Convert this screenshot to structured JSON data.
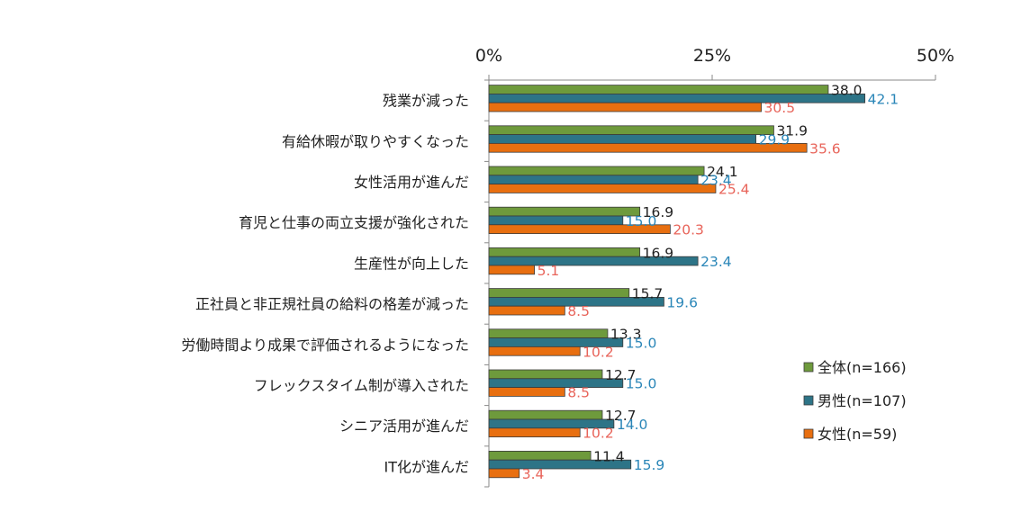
{
  "chart_data": {
    "type": "bar",
    "orientation": "horizontal",
    "xlim": [
      0,
      50
    ],
    "x_ticks": [
      "0%",
      "25%",
      "50%"
    ],
    "x_tick_values": [
      0,
      25,
      50
    ],
    "grid": false,
    "legend_position": "right",
    "categories": [
      "残業が減った",
      "有給休暇が取りやすくなった",
      "女性活用が進んだ",
      "育児と仕事の両立支援が強化された",
      "生産性が向上した",
      "正社員と非正規社員の給料の格差が減った",
      "労働時間より成果で評価されるようになった",
      "フレックスタイム制が導入された",
      "シニア活用が進んだ",
      "IT化が進んだ"
    ],
    "series": [
      {
        "name": "全体(n=166)",
        "color": "#6e9a3c",
        "label_color": "#222222",
        "values": [
          38.0,
          31.9,
          24.1,
          16.9,
          16.9,
          15.7,
          13.3,
          12.7,
          12.7,
          11.4
        ],
        "labels": [
          "38.0",
          "31.9",
          "24.1",
          "16.9",
          "16.9",
          "15.7",
          "13.3",
          "12.7",
          "12.7",
          "11.4"
        ]
      },
      {
        "name": "男性(n=107)",
        "color": "#2d7487",
        "label_color": "#2a86b8",
        "values": [
          42.1,
          29.9,
          23.4,
          15.0,
          23.4,
          19.6,
          15.0,
          15.0,
          14.0,
          15.9
        ],
        "labels": [
          "42.1",
          "29.9",
          "23.4",
          "15.0",
          "23.4",
          "19.6",
          "15.0",
          "15.0",
          "14.0",
          "15.9"
        ]
      },
      {
        "name": "女性(n=59)",
        "color": "#e86f10",
        "label_color": "#e8645a",
        "values": [
          30.5,
          35.6,
          25.4,
          20.3,
          5.1,
          8.5,
          10.2,
          8.5,
          10.2,
          3.4
        ],
        "labels": [
          "30.5",
          "35.6",
          "25.4",
          "20.3",
          "5.1",
          "8.5",
          "10.2",
          "8.5",
          "10.2",
          "3.4"
        ]
      }
    ]
  }
}
